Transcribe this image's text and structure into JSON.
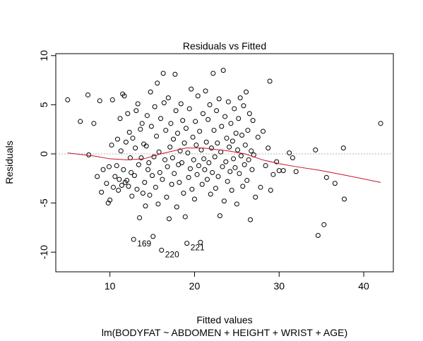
{
  "chart_data": {
    "type": "scatter",
    "title": "Residuals vs Fitted",
    "xlabel": "Fitted values",
    "ylabel": "Residuals",
    "subtitle": "lm(BODYFAT ~ ABDOMEN + HEIGHT + WRIST + AGE)",
    "xlim": [
      3.6,
      43.5
    ],
    "ylim": [
      -12,
      10.2
    ],
    "xticks": [
      10,
      20,
      30,
      40
    ],
    "yticks": [
      -10,
      -5,
      0,
      5,
      10
    ],
    "reference_line_y": 0,
    "colors": {
      "points": "#000000",
      "smooth": "#c8102e",
      "reference": "#b0b0b0"
    },
    "labeled_points": [
      {
        "label": "169",
        "x": 12.8,
        "y": -8.7
      },
      {
        "label": "220",
        "x": 16.1,
        "y": -9.8
      },
      {
        "label": "221",
        "x": 19.1,
        "y": -9.1
      }
    ],
    "smooth": {
      "x": [
        5,
        8,
        10,
        12,
        14,
        16,
        18,
        19,
        20,
        21,
        22,
        24,
        26,
        28,
        30,
        32,
        35,
        38,
        42
      ],
      "y": [
        0.1,
        -0.2,
        -0.5,
        -0.6,
        -0.5,
        0,
        0.4,
        0.6,
        0.6,
        0.6,
        0.5,
        0.3,
        0,
        -0.6,
        -1,
        -1.3,
        -1.7,
        -2.2,
        -2.9
      ]
    },
    "points": [
      [
        5,
        5.5
      ],
      [
        6.5,
        3.3
      ],
      [
        7.4,
        6
      ],
      [
        7.5,
        -0.1
      ],
      [
        8.1,
        3.1
      ],
      [
        8.5,
        -2.3
      ],
      [
        8.8,
        5.4
      ],
      [
        9,
        -3.9
      ],
      [
        9.2,
        -1.6
      ],
      [
        9.6,
        -3
      ],
      [
        9.8,
        -5
      ],
      [
        9.9,
        -1.3
      ],
      [
        10,
        -4.7
      ],
      [
        10.2,
        0.9
      ],
      [
        10.3,
        5.5
      ],
      [
        10.4,
        -3.4
      ],
      [
        10.6,
        -2.3
      ],
      [
        10.8,
        -1.2
      ],
      [
        10.9,
        1.5
      ],
      [
        11,
        -3.7
      ],
      [
        11.1,
        -2.6
      ],
      [
        11.2,
        3.6
      ],
      [
        11.3,
        0.3
      ],
      [
        11.4,
        -3.2
      ],
      [
        11.5,
        6.1
      ],
      [
        11.6,
        -1.6
      ],
      [
        11.7,
        5.9
      ],
      [
        11.8,
        -2.9
      ],
      [
        11.9,
        1.2
      ],
      [
        12,
        -2.7
      ],
      [
        12.1,
        4.1
      ],
      [
        12.2,
        -3.3
      ],
      [
        12.3,
        2.2
      ],
      [
        12.4,
        -0.4
      ],
      [
        12.5,
        -1.9
      ],
      [
        12.6,
        -4.3
      ],
      [
        12.7,
        1.6
      ],
      [
        12.8,
        -8.7
      ],
      [
        12.9,
        -2.2
      ],
      [
        13,
        0.6
      ],
      [
        13.1,
        4.4
      ],
      [
        13.2,
        -3.6
      ],
      [
        13.3,
        5.1
      ],
      [
        13.4,
        -1.1
      ],
      [
        13.5,
        -6.5
      ],
      [
        13.6,
        2.5
      ],
      [
        13.7,
        -0.4
      ],
      [
        13.8,
        3.1
      ],
      [
        13.9,
        -4
      ],
      [
        14,
        1
      ],
      [
        14.1,
        -2.9
      ],
      [
        14.2,
        -5.3
      ],
      [
        14.3,
        0.8
      ],
      [
        14.4,
        3.9
      ],
      [
        14.5,
        -1.6
      ],
      [
        14.6,
        -0.9
      ],
      [
        14.7,
        -4.2
      ],
      [
        14.8,
        6.3
      ],
      [
        14.9,
        2.8
      ],
      [
        15,
        -2.2
      ],
      [
        15.1,
        -8.4
      ],
      [
        15.2,
        -0.3
      ],
      [
        15.3,
        4.8
      ],
      [
        15.4,
        -3.4
      ],
      [
        15.5,
        1.8
      ],
      [
        15.6,
        7.2
      ],
      [
        15.7,
        -5.1
      ],
      [
        15.8,
        0.2
      ],
      [
        15.9,
        -1.9
      ],
      [
        16,
        3.6
      ],
      [
        16.1,
        -9.8
      ],
      [
        16.2,
        -2.6
      ],
      [
        16.3,
        8.2
      ],
      [
        16.4,
        5.2
      ],
      [
        16.5,
        -0.6
      ],
      [
        16.6,
        2.4
      ],
      [
        16.7,
        -4.4
      ],
      [
        16.8,
        -1.3
      ],
      [
        16.9,
        5.7
      ],
      [
        17,
        -6.6
      ],
      [
        17.1,
        0.7
      ],
      [
        17.2,
        3.1
      ],
      [
        17.3,
        -3.1
      ],
      [
        17.4,
        -0.4
      ],
      [
        17.5,
        1.5
      ],
      [
        17.6,
        -2
      ],
      [
        17.7,
        8.1
      ],
      [
        17.8,
        4.4
      ],
      [
        17.9,
        -5.4
      ],
      [
        18,
        2.1
      ],
      [
        18.1,
        -1.1
      ],
      [
        18.2,
        -2.9
      ],
      [
        18.3,
        0.3
      ],
      [
        18.4,
        5.1
      ],
      [
        18.5,
        -0.9
      ],
      [
        18.6,
        3.4
      ],
      [
        18.7,
        -4
      ],
      [
        18.8,
        1.1
      ],
      [
        18.9,
        -6.4
      ],
      [
        19,
        2.6
      ],
      [
        19.1,
        -9.1
      ],
      [
        19.2,
        0.1
      ],
      [
        19.3,
        -2.4
      ],
      [
        19.4,
        4.6
      ],
      [
        19.5,
        -1.5
      ],
      [
        19.6,
        6.6
      ],
      [
        19.7,
        -3.6
      ],
      [
        19.8,
        1.7
      ],
      [
        19.9,
        -0.6
      ],
      [
        20,
        -4.6
      ],
      [
        20.1,
        3.3
      ],
      [
        20.2,
        0.9
      ],
      [
        20.3,
        -2.1
      ],
      [
        20.4,
        5.9
      ],
      [
        20.5,
        -1.2
      ],
      [
        20.6,
        2.3
      ],
      [
        20.7,
        -9
      ],
      [
        20.8,
        0.4
      ],
      [
        20.9,
        -3.1
      ],
      [
        21,
        4.1
      ],
      [
        21.1,
        -0.5
      ],
      [
        21.2,
        -1.6
      ],
      [
        21.3,
        6.4
      ],
      [
        21.4,
        1.2
      ],
      [
        21.5,
        -2.6
      ],
      [
        21.6,
        3.5
      ],
      [
        21.7,
        -0.9
      ],
      [
        21.8,
        5
      ],
      [
        21.9,
        -4.1
      ],
      [
        22,
        0.6
      ],
      [
        22.1,
        -1.9
      ],
      [
        22.2,
        8.2
      ],
      [
        22.3,
        2.4
      ],
      [
        22.4,
        -0.3
      ],
      [
        22.5,
        -3.5
      ],
      [
        22.6,
        4.4
      ],
      [
        22.7,
        1.1
      ],
      [
        22.8,
        -2.3
      ],
      [
        22.9,
        5.6
      ],
      [
        23,
        -6.3
      ],
      [
        23.1,
        0.2
      ],
      [
        23.2,
        2.8
      ],
      [
        23.3,
        -1.3
      ],
      [
        23.4,
        8.5
      ],
      [
        23.5,
        -4.8
      ],
      [
        23.6,
        3.8
      ],
      [
        23.7,
        -0.8
      ],
      [
        23.8,
        1.6
      ],
      [
        23.9,
        -2.8
      ],
      [
        24,
        5.3
      ],
      [
        24.1,
        0.7
      ],
      [
        24.2,
        -1.8
      ],
      [
        24.3,
        3.1
      ],
      [
        24.4,
        -3.7
      ],
      [
        24.5,
        1.3
      ],
      [
        24.6,
        -0.5
      ],
      [
        24.7,
        4.6
      ],
      [
        24.8,
        -1.4
      ],
      [
        24.9,
        2.1
      ],
      [
        25,
        -5.1
      ],
      [
        25.1,
        0.4
      ],
      [
        25.2,
        3.6
      ],
      [
        25.3,
        -2
      ],
      [
        25.4,
        5.7
      ],
      [
        25.5,
        -0.2
      ],
      [
        25.6,
        1.9
      ],
      [
        25.7,
        -3.3
      ],
      [
        25.8,
        4.9
      ],
      [
        25.9,
        -1.1
      ],
      [
        26,
        0.9
      ],
      [
        26.1,
        6.3
      ],
      [
        26.2,
        -2.7
      ],
      [
        26.3,
        2.4
      ],
      [
        26.4,
        -0.6
      ],
      [
        26.5,
        4.1
      ],
      [
        26.6,
        -6.7
      ],
      [
        26.7,
        0.3
      ],
      [
        26.8,
        -1.6
      ],
      [
        26.9,
        3.4
      ],
      [
        27,
        -0.1
      ],
      [
        27.2,
        -4.4
      ],
      [
        27.5,
        1.7
      ],
      [
        27.8,
        -3.4
      ],
      [
        28.1,
        2.3
      ],
      [
        28.4,
        -1.2
      ],
      [
        28.7,
        0.6
      ],
      [
        28.9,
        7.4
      ],
      [
        29,
        -3.7
      ],
      [
        29.3,
        -2.1
      ],
      [
        29.7,
        -0.8
      ],
      [
        30,
        -1.7
      ],
      [
        30.5,
        -1.7
      ],
      [
        31.2,
        0.1
      ],
      [
        31.6,
        -0.4
      ],
      [
        32,
        -1.8
      ],
      [
        34.3,
        0.4
      ],
      [
        34.6,
        -8.3
      ],
      [
        35.3,
        -7.2
      ],
      [
        35.6,
        -2.4
      ],
      [
        36.6,
        -3
      ],
      [
        37.6,
        0.6
      ],
      [
        37.7,
        -4.6
      ],
      [
        42,
        3.1
      ]
    ]
  }
}
